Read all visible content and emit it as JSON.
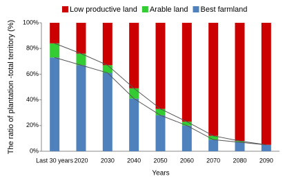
{
  "chart_data": {
    "type": "stacked_bar",
    "stacking": "percent",
    "y_label": "The ratio of  plantation -total territory  (%)",
    "x_label": "Years",
    "categories": [
      "Last 30 years",
      "2020",
      "2030",
      "2040",
      "2050",
      "2060",
      "2070",
      "2080",
      "2090"
    ],
    "series": [
      {
        "name": "Low productive land",
        "color": "#cc0000",
        "values": [
          16,
          24,
          33,
          51,
          67,
          77,
          88,
          92,
          95
        ]
      },
      {
        "name": "Arable land",
        "color": "#33cc33",
        "values": [
          11,
          9,
          6,
          8,
          5,
          3,
          3,
          1,
          0
        ]
      },
      {
        "name": "Best farmland",
        "color": "#4f81bd",
        "values": [
          73,
          67,
          61,
          41,
          28,
          20,
          9,
          7,
          5
        ]
      }
    ],
    "ylim": [
      0,
      100
    ],
    "yticks": [
      {
        "value": 0,
        "label": "0%"
      },
      {
        "value": 20,
        "label": "20%"
      },
      {
        "value": 40,
        "label": "40%"
      },
      {
        "value": 60,
        "label": "60%"
      },
      {
        "value": 80,
        "label": "80%"
      },
      {
        "value": 100,
        "label": "100%"
      }
    ],
    "grid": false,
    "legend": "top",
    "trend_lines": true
  }
}
